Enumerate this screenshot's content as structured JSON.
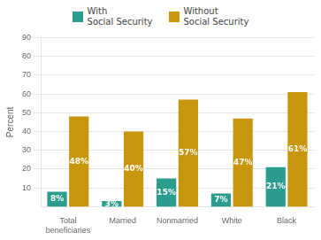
{
  "chart_data": {
    "type": "bar",
    "categories": [
      "Total\nbeneficiaries",
      "Married",
      "Nonmarried",
      "White",
      "Black"
    ],
    "series": [
      {
        "name": "With\nSocial Security",
        "color": "#2a9d8f",
        "values": [
          8,
          3,
          15,
          7,
          21
        ],
        "value_labels": [
          "8%",
          "3%",
          "15%",
          "7%",
          "21%"
        ]
      },
      {
        "name": "Without\nSocial Security",
        "color": "#c8960c",
        "values": [
          48,
          40,
          57,
          47,
          61
        ],
        "value_labels": [
          "48%",
          "40%",
          "57%",
          "47%",
          "61%"
        ]
      }
    ],
    "ylabel": "Percent",
    "ylim": [
      0,
      90
    ],
    "yticks": [
      10,
      20,
      30,
      40,
      50,
      60,
      70,
      80,
      90
    ],
    "grid": true,
    "legend": "top",
    "data_labels": true
  }
}
